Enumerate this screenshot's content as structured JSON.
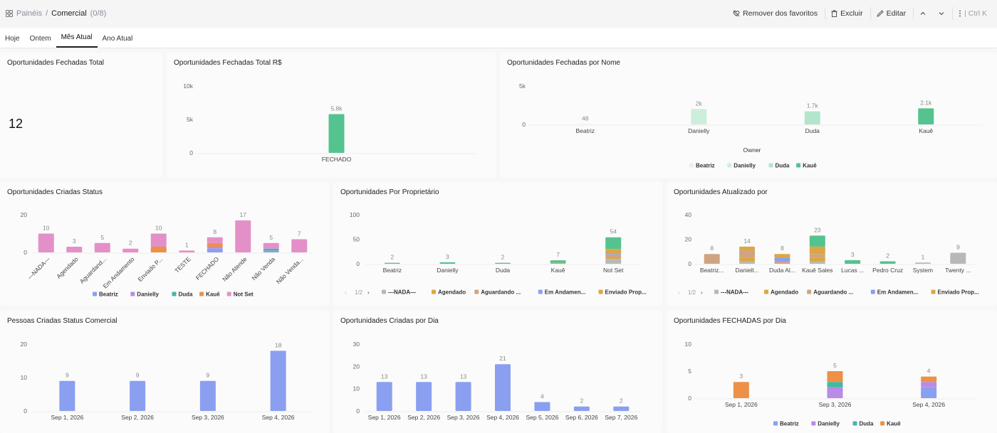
{
  "header": {
    "breadcrumb_root": "Painéis",
    "breadcrumb_sep": "/",
    "breadcrumb_current": "Comercial",
    "breadcrumb_count": "(0/8)",
    "remove_fav": "Remover dos favoritos",
    "delete": "Excluir",
    "edit": "Editar",
    "shortcut": "Ctrl K"
  },
  "tabs": [
    "Hoje",
    "Ontem",
    "Mês Atual",
    "Ano Atual"
  ],
  "active_tab": "Mês Atual",
  "colors": {
    "pink": "#e490c8",
    "purple": "#b98be6",
    "teal": "#44b8a6",
    "orange": "#ec9145",
    "blue": "#8b9ff0",
    "green": "#54c38f",
    "green_light": "#b3e5cb",
    "green_pale": "#e3f3ea",
    "gray": "#b8b8b8",
    "gold": "#dca642",
    "tan": "#d0a481",
    "lilac": "#c9b6e4",
    "red_orange": "#e57a50",
    "olive": "#a6b04a"
  },
  "cards": {
    "c1": {
      "title": "Oportunidades Fechadas Total",
      "value": "12"
    },
    "c2": {
      "title": "Oportunidades Fechadas Total R$"
    },
    "c3": {
      "title": "Oportunidades Fechadas por Nome",
      "legend_title": "Owner"
    },
    "c4": {
      "title": "Oportunidades Criadas Status"
    },
    "c5": {
      "title": "Oportunidades Por Proprietário",
      "pager": "1/2"
    },
    "c6": {
      "title": "Oportunidades Atualizado por",
      "pager": "1/2"
    },
    "c7": {
      "title": "Pessoas Criadas Status Comercial"
    },
    "c8": {
      "title": "Oportunidades Criadas por Dia"
    },
    "c9": {
      "title": "Oportunidades FECHADAS por Dia"
    }
  },
  "chart_data": [
    {
      "id": "c2",
      "type": "bar",
      "categories": [
        "FECHADO"
      ],
      "values": [
        5800
      ],
      "value_labels": [
        "5.8k"
      ],
      "ylim": [
        0,
        10000
      ],
      "yticks": [
        "0",
        "5k",
        "10k"
      ]
    },
    {
      "id": "c3",
      "type": "bar",
      "categories": [
        "Beatriz",
        "Danielly",
        "Duda",
        "Kauê"
      ],
      "values": [
        48,
        2000,
        1700,
        2100
      ],
      "value_labels": [
        "48",
        "2k",
        "1.7k",
        "2.1k"
      ],
      "colors": [
        "#e3f3ea",
        "#cdeedb",
        "#b3e5cb",
        "#54c38f"
      ],
      "ylim": [
        0,
        5000
      ],
      "yticks": [
        "0",
        "5k"
      ],
      "legend": [
        "Beatriz",
        "Danielly",
        "Duda",
        "Kauê"
      ]
    },
    {
      "id": "c4",
      "type": "bar",
      "stacked": true,
      "categories": [
        "---NADA---",
        "Agendado",
        "Aguardand...",
        "Em Andamento",
        "Enviado P...",
        "TESTE",
        "FECHADO",
        "Não Atende",
        "Não Venda",
        "Não Venda..."
      ],
      "totals": [
        10,
        3,
        5,
        2,
        10,
        1,
        8,
        17,
        5,
        7
      ],
      "series": [
        {
          "name": "Beatriz",
          "color": "#8b9ff0",
          "values": [
            0,
            0,
            0,
            0,
            0,
            0,
            2,
            0,
            1,
            0
          ]
        },
        {
          "name": "Danielly",
          "color": "#b98be6",
          "values": [
            0,
            0,
            0,
            0,
            0,
            0,
            1,
            0,
            0,
            0
          ]
        },
        {
          "name": "Duda",
          "color": "#44b8a6",
          "values": [
            0,
            0,
            0,
            0,
            0,
            0,
            0,
            0,
            1,
            0
          ]
        },
        {
          "name": "Kauê",
          "color": "#ec9145",
          "values": [
            0,
            0,
            0,
            0,
            3,
            0,
            2,
            0,
            0,
            0
          ]
        },
        {
          "name": "Not Set",
          "color": "#e490c8",
          "values": [
            10,
            3,
            5,
            2,
            7,
            1,
            3,
            17,
            3,
            7
          ]
        }
      ],
      "ylim": [
        0,
        20
      ],
      "yticks": [
        "0",
        "20"
      ]
    },
    {
      "id": "c5",
      "type": "bar",
      "stacked": true,
      "categories": [
        "Beatriz",
        "Danielly",
        "Duda",
        "Kauê",
        "Not Set"
      ],
      "totals": [
        2,
        3,
        2,
        7,
        54
      ],
      "series": [
        {
          "name": "---NADA---",
          "color": "#b8b8b8",
          "values": [
            0,
            0,
            0,
            0,
            10
          ]
        },
        {
          "name": "Agendado",
          "color": "#dca642",
          "values": [
            0,
            0,
            0,
            2,
            3
          ]
        },
        {
          "name": "Aguardando ...",
          "color": "#d0a481",
          "values": [
            0,
            0,
            0,
            0,
            5
          ]
        },
        {
          "name": "Em Andamen...",
          "color": "#8b9ff0",
          "values": [
            0,
            0,
            0,
            0,
            2
          ]
        },
        {
          "name": "Enviado Prop...",
          "color": "#dca642",
          "values": [
            0,
            0,
            0,
            0,
            10
          ]
        },
        {
          "name": "Outros",
          "color": "#54c38f",
          "values": [
            2,
            3,
            2,
            5,
            24
          ]
        }
      ],
      "ylim": [
        0,
        100
      ],
      "yticks": [
        "0",
        "50",
        "100"
      ],
      "legend": [
        "---NADA---",
        "Agendado",
        "Aguardando ...",
        "Em Andamen...",
        "Enviado Prop..."
      ]
    },
    {
      "id": "c6",
      "type": "bar",
      "stacked": true,
      "categories": [
        "Beatriz...",
        "Daniell...",
        "Duda Al...",
        "Kauê Sales",
        "Lucas ...",
        "Pedro Cruz",
        "System",
        "Twenty ..."
      ],
      "totals": [
        8,
        14,
        8,
        23,
        3,
        2,
        1,
        9
      ],
      "series": [
        {
          "name": "---NADA---",
          "color": "#b8b8b8",
          "values": [
            0,
            2,
            0,
            2,
            0,
            0,
            1,
            9
          ]
        },
        {
          "name": "Agendado",
          "color": "#dca642",
          "values": [
            0,
            3,
            0,
            3,
            0,
            0,
            0,
            0
          ]
        },
        {
          "name": "Aguardando ...",
          "color": "#d0a481",
          "values": [
            8,
            6,
            2,
            3,
            0,
            0,
            0,
            0
          ]
        },
        {
          "name": "Em Andamen...",
          "color": "#8b9ff0",
          "values": [
            0,
            0,
            3,
            0,
            0,
            0,
            0,
            0
          ]
        },
        {
          "name": "Enviado Prop...",
          "color": "#dca642",
          "values": [
            0,
            3,
            3,
            6,
            0,
            0,
            0,
            0
          ]
        },
        {
          "name": "Outros",
          "color": "#54c38f",
          "values": [
            0,
            0,
            0,
            9,
            3,
            2,
            0,
            0
          ]
        }
      ],
      "ylim": [
        0,
        40
      ],
      "yticks": [
        "0",
        "20",
        "40"
      ],
      "legend": [
        "---NADA---",
        "Agendado",
        "Aguardando ...",
        "Em Andamen...",
        "Enviado Prop..."
      ]
    },
    {
      "id": "c7",
      "type": "bar",
      "categories": [
        "Sep 1, 2026",
        "Sep 2, 2026",
        "Sep 3, 2026",
        "Sep 4, 2026"
      ],
      "values": [
        9,
        9,
        9,
        18
      ],
      "color": "#8b9ff0",
      "ylim": [
        0,
        20
      ],
      "yticks": [
        "0",
        "10",
        "20"
      ]
    },
    {
      "id": "c8",
      "type": "bar",
      "categories": [
        "Sep 1, 2026",
        "Sep 2, 2026",
        "Sep 3, 2026",
        "Sep 4, 2026",
        "Sep 5, 2026",
        "Sep 6, 2026",
        "Sep 7, 2026"
      ],
      "values": [
        13,
        13,
        13,
        21,
        4,
        2,
        2
      ],
      "color": "#8b9ff0",
      "ylim": [
        0,
        30
      ],
      "yticks": [
        "0",
        "10",
        "20",
        "30"
      ]
    },
    {
      "id": "c9",
      "type": "bar",
      "stacked": true,
      "categories": [
        "Sep 1, 2026",
        "Sep 3, 2026",
        "Sep 4, 2026"
      ],
      "totals": [
        3,
        5,
        4
      ],
      "series": [
        {
          "name": "Beatriz",
          "color": "#8b9ff0",
          "values": [
            0,
            0,
            2
          ]
        },
        {
          "name": "Danielly",
          "color": "#b98be6",
          "values": [
            0,
            2,
            1
          ]
        },
        {
          "name": "Duda",
          "color": "#44b8a6",
          "values": [
            0,
            1,
            0
          ]
        },
        {
          "name": "Kauê",
          "color": "#ec9145",
          "values": [
            3,
            2,
            1
          ]
        }
      ],
      "ylim": [
        0,
        10
      ],
      "yticks": [
        "0",
        "5",
        "10"
      ],
      "legend": [
        "Beatriz",
        "Danielly",
        "Duda",
        "Kauê"
      ]
    }
  ]
}
